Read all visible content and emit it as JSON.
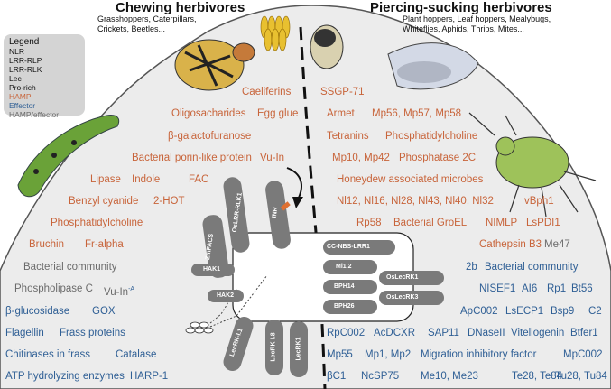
{
  "headers": {
    "chewing": {
      "title": "Chewing herbivores",
      "subtitle_line1": "Grasshoppers, Caterpillars,",
      "subtitle_line2": "Crickets, Beetles..."
    },
    "piercing": {
      "title": "Piercing-sucking herbivores",
      "subtitle_line1": "Plant hoppers, Leaf hoppers, Mealybugs,",
      "subtitle_line2": "Whiteflies, Aphids, Thrips, Mites..."
    }
  },
  "legend": {
    "title": "Legend",
    "items": [
      "NLR",
      "LRR-RLP",
      "LRR-RLK",
      "Lec",
      "Pro-rich",
      "HAMP",
      "Effector",
      "HAMP/effector"
    ]
  },
  "colors": {
    "hamp": "#c8643a",
    "effector": "#2f5f95",
    "hamp_effector": "#6b6b6b",
    "receptor": "#7a7a7a",
    "leaf": "#ececec"
  },
  "left_labels": {
    "caeliferins": "Caeliferins",
    "oligosacharides": "Oligosacharides",
    "egg_glue": "Egg glue",
    "galactofuranose": "β-galactofuranose",
    "porin": "Bacterial porin-like protein",
    "vu_in": "Vu-In",
    "fac": "FAC",
    "lipase": "Lipase",
    "indole": "Indole",
    "benzyl_cyanide": "Benzyl cyanide",
    "hot": "2-HOT",
    "phosphatidylcholine": "Phosphatidylcholine",
    "bruchin": "Bruchin",
    "fr_alpha": "Fr-alpha",
    "bacterial_community": "Bacterial community",
    "phospholipase": "Phospholipase C",
    "vu_in_a": "Vu-In",
    "vu_in_a_sup": "-A",
    "glucosidase": "β-glucosidase",
    "gox": "GOX",
    "flagellin": "Flagellin",
    "frass_proteins": "Frass proteins",
    "chitinases": "Chitinases in frass",
    "catalase": "Catalase",
    "atp": "ATP hydrolyzing enzymes",
    "harp": "HARP-1"
  },
  "right_labels": {
    "ssgp": "SSGP-71",
    "armet": "Armet",
    "mp56": "Mp56, Mp57, Mp58",
    "tetranins": "Tetranins",
    "phosphatidylcholine": "Phosphatidylcholine",
    "mp10": "Mp10, Mp42",
    "phosphatase": "Phosphatase 2C",
    "honeydew": "Honeydew associated microbes",
    "nl": "Nl12, Nl16, Nl28, Nl43, Nl40, Nl32",
    "vbph1": "vBph1",
    "rp58": "Rp58",
    "groel": "Bacterial GroEL",
    "nimlp": "NIMLP",
    "lspdi1": "LsPDI1",
    "cathepsin": "Cathepsin B3",
    "me47": "Me47",
    "b2b": "2b",
    "bact_comm": "Bacterial community",
    "nisef1": "NISEF1",
    "ai6": "AI6",
    "rp1": "Rp1",
    "bt56": "Bt56",
    "apc002": "ApC002",
    "lsecp1": "LsECP1",
    "bsp9": "Bsp9",
    "c2": "C2",
    "rpc002": "RpC002",
    "acdcxr": "AcDCXR",
    "sap11": "SAP11",
    "dnaseii": "DNaseII",
    "vitellogenin": "Vitellogenin",
    "btfer1": "Btfer1",
    "mp55": "Mp55",
    "mp1": "Mp1, Mp2",
    "migration": "Migration inhibitory factor",
    "mpc002": "MpC002",
    "bc1": "βC1",
    "ncsp75": "NcSP75",
    "me10": "Me10, Me23",
    "te28": "Te28, Te84",
    "tu28": "Tu28, Tu84"
  },
  "receptors": {
    "oslrr": "OsLRR-RLK1",
    "inr": "INR",
    "zmfacs": "ZmFACS",
    "hak1": "HAK1",
    "hak2": "HAK2",
    "lecrk11": "LecRK-I.1",
    "lecrk18": "LecRK-I.8",
    "lecrk1": "LecRK1",
    "ccnbs": "CC-NBS-LRR1",
    "mi12": "Mi1.2",
    "bph14": "BPH14",
    "bph26": "BPH26",
    "oslec1": "OsLecRK1",
    "oslec3": "OsLecRK3"
  }
}
